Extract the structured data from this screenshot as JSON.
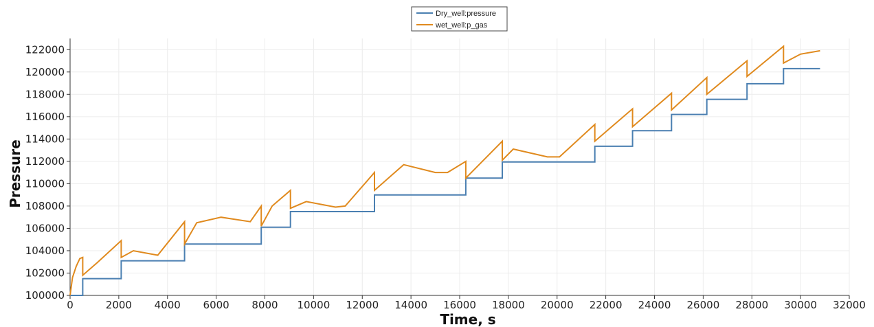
{
  "chart_data": {
    "type": "line",
    "xlabel": "Time, s",
    "ylabel": "Pressure",
    "xlim": [
      0,
      32000
    ],
    "ylim": [
      100000,
      123000
    ],
    "x_ticks": [
      0,
      2000,
      4000,
      6000,
      8000,
      10000,
      12000,
      14000,
      16000,
      18000,
      20000,
      22000,
      24000,
      26000,
      28000,
      30000,
      32000
    ],
    "x_tick_labels": [
      "0",
      "2000",
      "4000",
      "6000",
      "8000",
      "10000",
      "12000",
      "14000",
      "16000",
      "18000",
      "20000",
      "22000",
      "24000",
      "26000",
      "28000",
      "30000",
      "32000"
    ],
    "y_ticks": [
      100000,
      102000,
      104000,
      106000,
      108000,
      110000,
      112000,
      114000,
      116000,
      118000,
      120000,
      122000
    ],
    "y_tick_labels": [
      "100000",
      "102000",
      "104000",
      "106000",
      "108000",
      "110000",
      "112000",
      "114000",
      "116000",
      "118000",
      "120000",
      "122000"
    ],
    "grid": true,
    "legend_position": "top-center",
    "series": [
      {
        "name": "Dry_well:pressure",
        "color": "#4a7fb1",
        "x": [
          0,
          520,
          520,
          2100,
          2100,
          4700,
          4700,
          7850,
          7850,
          9050,
          9050,
          12500,
          12500,
          16250,
          16250,
          17750,
          17750,
          21550,
          21550,
          23100,
          23100,
          24700,
          24700,
          26150,
          26150,
          27800,
          27800,
          29300,
          29300,
          30800
        ],
        "y": [
          100000,
          100000,
          101500,
          101500,
          103100,
          103100,
          104600,
          104600,
          106100,
          106100,
          107500,
          107500,
          109000,
          109000,
          110500,
          110500,
          111950,
          111950,
          113350,
          113350,
          114750,
          114750,
          116200,
          116200,
          117550,
          117550,
          118950,
          118950,
          120300,
          120300
        ]
      },
      {
        "name": "wet_well:p_gas",
        "color": "#e08a1e",
        "x": [
          0,
          100,
          250,
          400,
          520,
          520,
          1100,
          2100,
          2100,
          2600,
          3600,
          4700,
          4700,
          5200,
          6200,
          7400,
          7850,
          7850,
          8300,
          9050,
          9050,
          9700,
          10900,
          11300,
          12500,
          12500,
          13700,
          15000,
          15500,
          16250,
          16250,
          17750,
          17750,
          18200,
          19600,
          20100,
          21550,
          21550,
          23100,
          23100,
          24700,
          24700,
          26150,
          26150,
          27800,
          27800,
          29300,
          29300,
          30000,
          30800
        ],
        "y": [
          100000,
          101600,
          102600,
          103300,
          103400,
          101800,
          102900,
          104900,
          103400,
          104000,
          103600,
          106600,
          104600,
          106500,
          107000,
          106600,
          108000,
          106200,
          108000,
          109400,
          107800,
          108400,
          107900,
          108000,
          111000,
          109400,
          111700,
          111000,
          111000,
          112000,
          110500,
          113800,
          112100,
          113100,
          112400,
          112400,
          115300,
          113800,
          116700,
          115100,
          118100,
          116600,
          119500,
          118000,
          121000,
          119600,
          122300,
          120800,
          121600,
          121900
        ]
      }
    ]
  }
}
